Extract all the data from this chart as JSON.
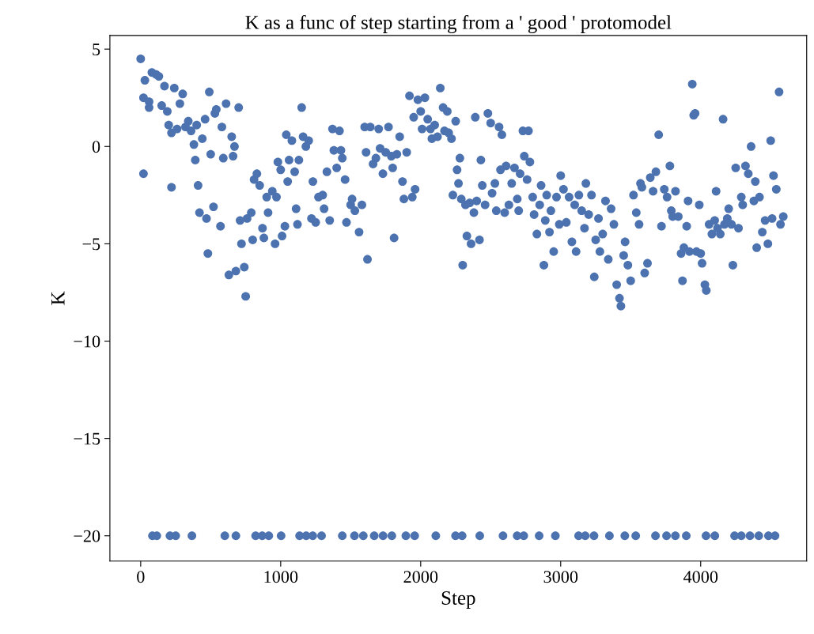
{
  "chart_data": {
    "type": "scatter",
    "title": "K as a func of step starting from a ' good ' protomodel",
    "xlabel": "Step",
    "ylabel": "K",
    "xlim": [
      -220,
      4757
    ],
    "ylim": [
      -21.3,
      5.7
    ],
    "xticks": [
      0,
      1000,
      2000,
      3000,
      4000
    ],
    "yticks": [
      {
        "value": -20,
        "label": "−20"
      },
      {
        "value": -15,
        "label": "−15"
      },
      {
        "value": -10,
        "label": "−10"
      },
      {
        "value": -5,
        "label": "−5"
      },
      0,
      5
    ],
    "marker": "circle",
    "grid": false,
    "series": [
      {
        "color": "#4c72b0",
        "x": [
          0,
          20,
          20,
          30,
          60,
          60,
          80,
          110,
          130,
          150,
          170,
          190,
          200,
          220,
          220,
          240,
          260,
          280,
          300,
          320,
          340,
          360,
          380,
          390,
          400,
          410,
          420,
          440,
          460,
          470,
          480,
          490,
          500,
          520,
          530,
          540,
          570,
          580,
          590,
          610,
          630,
          650,
          660,
          670,
          680,
          700,
          710,
          720,
          740,
          750,
          760,
          790,
          800,
          810,
          830,
          850,
          870,
          880,
          900,
          910,
          940,
          960,
          970,
          980,
          1000,
          1010,
          1030,
          1040,
          1050,
          1060,
          1080,
          1100,
          1110,
          1120,
          1130,
          1150,
          1160,
          1180,
          1200,
          1220,
          1230,
          1250,
          1270,
          1300,
          1310,
          1330,
          1350,
          1370,
          1380,
          1400,
          1420,
          1430,
          1440,
          1460,
          1470,
          1500,
          1510,
          1530,
          1560,
          1580,
          1600,
          1610,
          1620,
          1640,
          1660,
          1680,
          1700,
          1710,
          1730,
          1750,
          1770,
          1790,
          1800,
          1810,
          1830,
          1850,
          1870,
          1880,
          1900,
          1920,
          1940,
          1950,
          1960,
          1980,
          2000,
          2010,
          2030,
          2050,
          2070,
          2080,
          2100,
          2120,
          2140,
          2160,
          2170,
          2190,
          2200,
          2220,
          2230,
          2250,
          2260,
          2270,
          2280,
          2290,
          2300,
          2320,
          2330,
          2350,
          2360,
          2380,
          2390,
          2400,
          2420,
          2430,
          2440,
          2460,
          2480,
          2500,
          2510,
          2530,
          2540,
          2560,
          2570,
          2580,
          2600,
          2610,
          2630,
          2650,
          2670,
          2690,
          2700,
          2710,
          2730,
          2740,
          2760,
          2770,
          2780,
          2800,
          2810,
          2830,
          2850,
          2860,
          2880,
          2890,
          2900,
          2920,
          2930,
          2950,
          2970,
          2990,
          3000,
          3020,
          3040,
          3060,
          3080,
          3100,
          3110,
          3130,
          3150,
          3170,
          3180,
          3200,
          3220,
          3240,
          3250,
          3270,
          3280,
          3300,
          3320,
          3340,
          3360,
          3380,
          3400,
          3420,
          3430,
          3450,
          3460,
          3480,
          3500,
          3520,
          3540,
          3560,
          3570,
          3580,
          3600,
          3620,
          3640,
          3660,
          3680,
          3700,
          3720,
          3740,
          3760,
          3780,
          3790,
          3800,
          3820,
          3840,
          3860,
          3870,
          3880,
          3900,
          3910,
          3920,
          3940,
          3950,
          3960,
          3970,
          3990,
          4000,
          4010,
          4030,
          4040,
          4060,
          4080,
          4100,
          4110,
          4120,
          4140,
          4160,
          4170,
          4190,
          4200,
          4220,
          4230,
          4250,
          4270,
          4290,
          4300,
          4320,
          4340,
          4360,
          4380,
          4390,
          4400,
          4420,
          4440,
          4460,
          4480,
          4500,
          4510,
          4520,
          4540,
          4560,
          4570,
          4590
        ],
        "values": [
          4.5,
          2.5,
          -1.4,
          3.4,
          2.3,
          2.0,
          3.8,
          3.7,
          3.6,
          2.1,
          3.1,
          1.8,
          1.1,
          0.7,
          -2.1,
          3.0,
          0.9,
          2.2,
          2.7,
          1.0,
          1.3,
          0.8,
          0.1,
          -0.7,
          1.1,
          -2.0,
          -3.4,
          0.4,
          1.4,
          -3.7,
          -5.5,
          2.8,
          -0.4,
          -3.1,
          1.7,
          1.9,
          -4.1,
          1.0,
          -0.6,
          2.2,
          -6.6,
          0.5,
          -0.5,
          0.0,
          -6.4,
          2.0,
          -3.8,
          -5.0,
          -6.2,
          -7.7,
          -3.7,
          -3.4,
          -4.8,
          -1.7,
          -1.4,
          -2.0,
          -4.2,
          -4.7,
          -2.6,
          -3.4,
          -2.3,
          -5.0,
          -2.6,
          -0.8,
          -1.2,
          -4.6,
          -4.1,
          0.6,
          -1.8,
          -0.7,
          0.3,
          -1.3,
          -3.2,
          -4.0,
          -0.7,
          2.0,
          0.5,
          0.0,
          0.3,
          -3.7,
          -1.8,
          -3.9,
          -2.6,
          -2.5,
          -3.2,
          -1.3,
          -3.8,
          0.9,
          -0.2,
          -1.1,
          0.8,
          -0.2,
          -0.6,
          -1.7,
          -3.9,
          -3.0,
          -2.7,
          -3.3,
          -4.4,
          -3.0,
          1.0,
          -0.3,
          -5.8,
          1.0,
          -0.9,
          -0.6,
          0.9,
          -0.1,
          -1.4,
          -0.3,
          1.0,
          -0.5,
          -1.1,
          -4.7,
          -0.4,
          0.5,
          -1.8,
          -2.7,
          -0.3,
          2.6,
          -2.6,
          1.5,
          -2.2,
          2.4,
          1.8,
          0.9,
          2.5,
          1.4,
          0.9,
          0.4,
          1.1,
          0.5,
          3.0,
          2.0,
          0.8,
          1.8,
          0.7,
          0.4,
          -2.5,
          1.3,
          -1.2,
          -1.9,
          -0.6,
          -2.7,
          -6.1,
          -3.0,
          -4.6,
          -2.9,
          -5.0,
          -3.4,
          1.5,
          -2.8,
          -4.8,
          -0.7,
          -2.0,
          -3.0,
          1.7,
          1.2,
          -2.4,
          -1.9,
          -3.3,
          1.0,
          -1.2,
          0.6,
          -3.4,
          -1.0,
          -3.0,
          -1.9,
          -1.1,
          -2.7,
          -3.3,
          -1.4,
          0.8,
          -0.5,
          -1.7,
          0.8,
          -0.8,
          -2.6,
          -3.5,
          -4.5,
          -3.0,
          -2.0,
          -6.1,
          -3.8,
          -2.5,
          -4.4,
          -3.3,
          -5.4,
          -2.6,
          -4.0,
          -1.5,
          -2.2,
          -3.9,
          -2.6,
          -4.9,
          -3.0,
          -5.4,
          -2.5,
          -3.3,
          -4.2,
          -1.9,
          -3.5,
          -2.5,
          -6.7,
          -4.8,
          -3.7,
          -5.4,
          -4.5,
          -2.8,
          -5.8,
          -3.2,
          -4.0,
          -7.1,
          -7.8,
          -8.2,
          -5.6,
          -4.9,
          -6.1,
          -6.9,
          -2.5,
          -3.4,
          -4.0,
          -1.9,
          -2.1,
          -6.5,
          -6.0,
          -1.6,
          -2.3,
          -1.3,
          0.6,
          -4.1,
          -2.2,
          -2.6,
          -1.0,
          -3.3,
          -3.6,
          -2.3,
          -3.6,
          -5.5,
          -6.9,
          -5.2,
          -4.1,
          -2.8,
          -5.4,
          3.2,
          1.6,
          1.7,
          -5.4,
          -3.0,
          -5.5,
          -6.0,
          -7.1,
          -7.4,
          -4.0,
          -4.5,
          -3.8,
          -2.3,
          -4.2,
          -4.5,
          1.4,
          -4.0,
          -3.7,
          -3.2,
          -4.0,
          -6.1,
          -1.1,
          -4.2,
          -2.6,
          -3.0,
          -1.0,
          -1.4,
          0.0,
          -2.8,
          -1.8,
          -5.2,
          -2.6,
          -4.4,
          -3.8,
          -5.0,
          0.3,
          -3.7,
          -1.5,
          -2.2,
          2.8,
          -4.0,
          -3.6
        ]
      },
      {
        "color": "#4c72b0",
        "x": [
          84,
          115,
          209,
          250,
          366,
          601,
          680,
          821,
          868,
          915,
          1003,
          1135,
          1182,
          1229,
          1292,
          1440,
          1527,
          1590,
          1668,
          1731,
          1794,
          1894,
          1957,
          2108,
          2249,
          2296,
          2422,
          2588,
          2689,
          2736,
          2846,
          2962,
          3128,
          3175,
          3238,
          3348,
          3458,
          3536,
          3677,
          3756,
          3819,
          3897,
          4038,
          4101,
          4242,
          4290,
          4352,
          4415,
          4484,
          4531
        ],
        "values": [
          -20,
          -20,
          -20,
          -20,
          -20,
          -20,
          -20,
          -20,
          -20,
          -20,
          -20,
          -20,
          -20,
          -20,
          -20,
          -20,
          -20,
          -20,
          -20,
          -20,
          -20,
          -20,
          -20,
          -20,
          -20,
          -20,
          -20,
          -20,
          -20,
          -20,
          -20,
          -20,
          -20,
          -20,
          -20,
          -20,
          -20,
          -20,
          -20,
          -20,
          -20,
          -20,
          -20,
          -20,
          -20,
          -20,
          -20,
          -20,
          -20,
          -20
        ]
      }
    ]
  }
}
